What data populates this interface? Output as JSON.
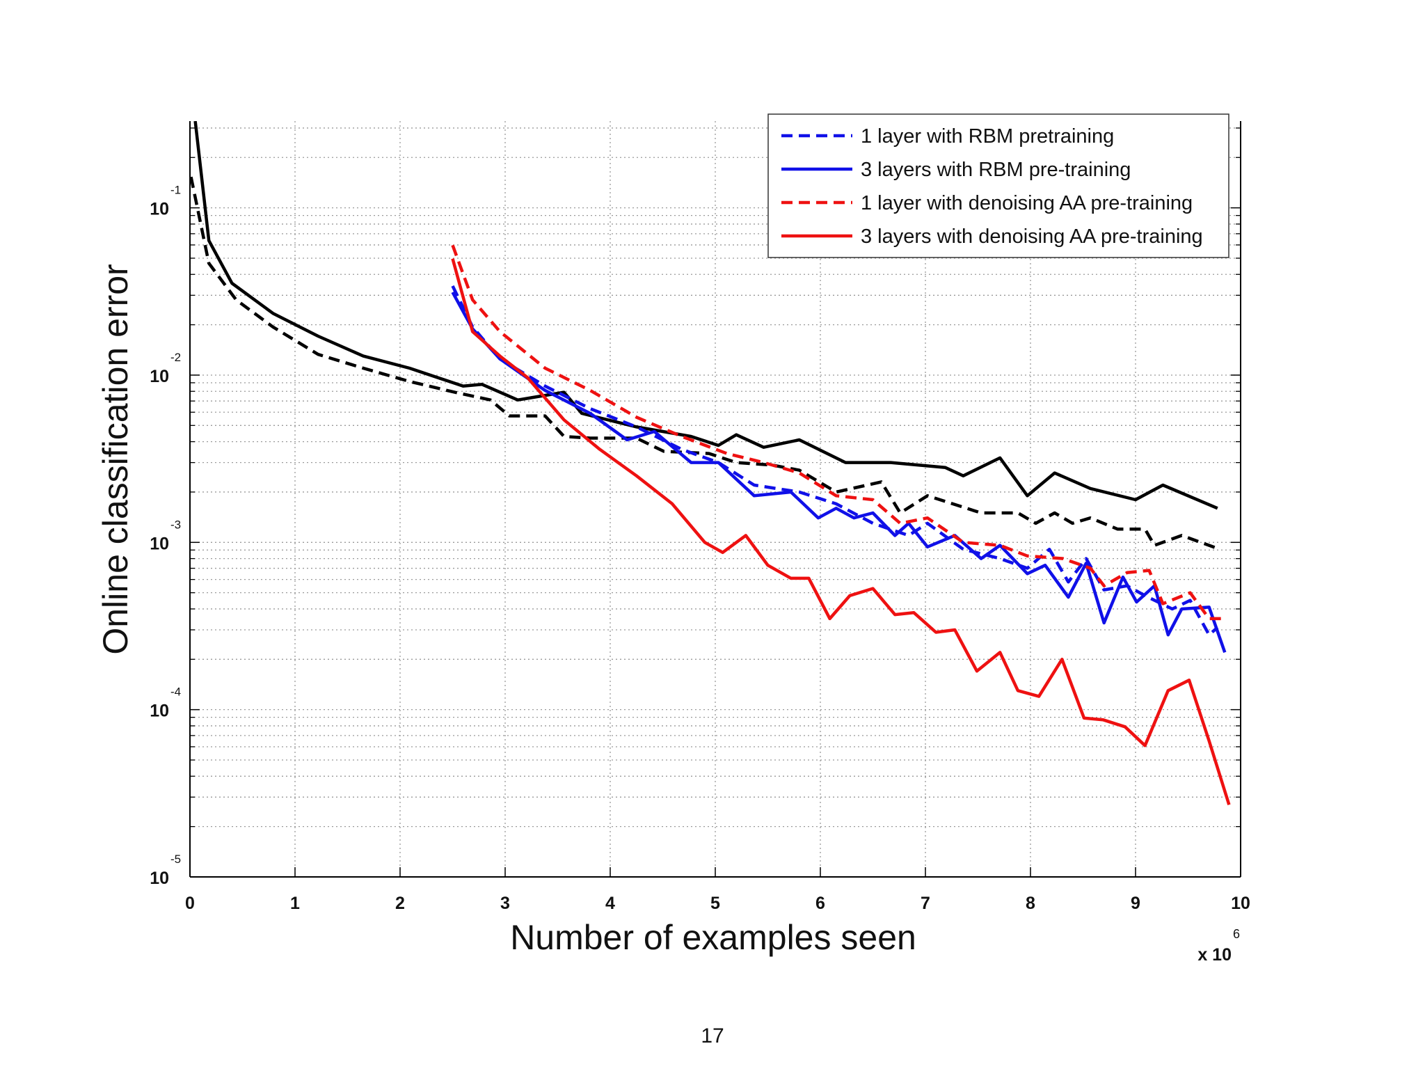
{
  "chart_data": {
    "type": "line",
    "xlabel": "Number of examples seen",
    "ylabel": "Online classification error",
    "x_scale_label": "x 10",
    "x_scale_exponent": "6",
    "xlim": [
      0,
      10
    ],
    "xticks": [
      0,
      1,
      2,
      3,
      4,
      5,
      6,
      7,
      8,
      9,
      10
    ],
    "ylim": [
      1e-05,
      0.33
    ],
    "yscale": "log",
    "yticks": [
      {
        "value": 1e-05,
        "label": "10",
        "exponent": "-5"
      },
      {
        "value": 0.0001,
        "label": "10",
        "exponent": "-4"
      },
      {
        "value": 0.001,
        "label": "10",
        "exponent": "-3"
      },
      {
        "value": 0.01,
        "label": "10",
        "exponent": "-2"
      },
      {
        "value": 0.1,
        "label": "10",
        "exponent": "-1"
      }
    ],
    "grid": true,
    "minor_grid": true,
    "legend": "upper right",
    "series": [
      {
        "color": "#000000",
        "style": "solid",
        "x": [
          0.05,
          0.18,
          0.4,
          0.79,
          1.22,
          1.65,
          2.09,
          2.6,
          2.78,
          3.12,
          3.56,
          3.73,
          4.25,
          4.77,
          5.03,
          5.2,
          5.46,
          5.8,
          6.24,
          6.67,
          7.19,
          7.36,
          7.71,
          7.97,
          8.23,
          8.57,
          9.0,
          9.26,
          9.78
        ],
        "values": [
          0.33,
          0.0637,
          0.0354,
          0.0234,
          0.0171,
          0.013,
          0.011,
          0.0086,
          0.0088,
          0.0071,
          0.0079,
          0.0059,
          0.0049,
          0.0043,
          0.0038,
          0.0044,
          0.0037,
          0.0041,
          0.003,
          0.003,
          0.0028,
          0.0025,
          0.0032,
          0.0019,
          0.0026,
          0.0021,
          0.0018,
          0.0022,
          0.0016
        ]
      },
      {
        "color": "#000000",
        "style": "dashed",
        "x": [
          0.01,
          0.18,
          0.44,
          0.79,
          1.22,
          1.65,
          2.08,
          2.52,
          2.86,
          3.04,
          3.38,
          3.56,
          3.81,
          4.25,
          4.51,
          4.94,
          5.2,
          5.54,
          5.8,
          6.15,
          6.58,
          6.76,
          7.02,
          7.53,
          7.88,
          8.05,
          8.23,
          8.4,
          8.57,
          8.83,
          9.09,
          9.18,
          9.44,
          9.78
        ],
        "values": [
          0.153,
          0.0466,
          0.0282,
          0.0194,
          0.0133,
          0.011,
          0.0092,
          0.0079,
          0.0071,
          0.0057,
          0.0057,
          0.0043,
          0.0042,
          0.0042,
          0.0035,
          0.0034,
          0.003,
          0.0029,
          0.0027,
          0.002,
          0.0023,
          0.0015,
          0.0019,
          0.0015,
          0.0015,
          0.0013,
          0.0015,
          0.0013,
          0.0014,
          0.0012,
          0.0012,
          0.00096,
          0.0011,
          0.00092
        ]
      },
      {
        "name": "1 layer with RBM pretraining",
        "color": "#1010e8",
        "style": "dashed",
        "x": [
          2.5,
          2.69,
          2.95,
          3.38,
          3.81,
          4.25,
          4.68,
          5.03,
          5.37,
          5.8,
          6.15,
          6.5,
          6.84,
          7.02,
          7.36,
          7.71,
          7.97,
          8.18,
          8.36,
          8.53,
          8.7,
          8.92,
          9.09,
          9.35,
          9.52,
          9.7,
          9.78
        ],
        "values": [
          0.0341,
          0.0194,
          0.0125,
          0.0086,
          0.0063,
          0.0049,
          0.0036,
          0.003,
          0.0022,
          0.002,
          0.0017,
          0.0013,
          0.0011,
          0.0013,
          0.00091,
          0.0008,
          0.0007,
          0.00091,
          0.00058,
          0.0008,
          0.00052,
          0.00055,
          0.00048,
          0.0004,
          0.00045,
          0.00028,
          0.00031
        ]
      },
      {
        "name": "3 layers with RBM pre-training",
        "color": "#1010e8",
        "style": "solid",
        "x": [
          2.5,
          2.69,
          2.95,
          3.38,
          3.81,
          4.16,
          4.42,
          4.77,
          5.03,
          5.37,
          5.72,
          5.98,
          6.15,
          6.32,
          6.5,
          6.71,
          6.84,
          7.02,
          7.28,
          7.53,
          7.71,
          7.97,
          8.14,
          8.36,
          8.53,
          8.7,
          8.88,
          9.01,
          9.18,
          9.31,
          9.44,
          9.7,
          9.85
        ],
        "values": [
          0.0313,
          0.0189,
          0.0125,
          0.0081,
          0.0059,
          0.0041,
          0.0046,
          0.003,
          0.003,
          0.0019,
          0.002,
          0.0014,
          0.0016,
          0.0014,
          0.0015,
          0.0011,
          0.0013,
          0.00094,
          0.0011,
          0.0008,
          0.00096,
          0.00065,
          0.00073,
          0.00047,
          0.00075,
          0.00033,
          0.00062,
          0.00044,
          0.00055,
          0.00028,
          0.0004,
          0.00041,
          0.00022
        ]
      },
      {
        "name": "1 layer with denoising AA pre-training",
        "color": "#ee1111",
        "style": "dashed",
        "x": [
          2.5,
          2.69,
          2.95,
          3.38,
          3.81,
          4.25,
          4.68,
          5.11,
          5.46,
          5.8,
          6.15,
          6.5,
          6.76,
          7.02,
          7.36,
          7.71,
          7.97,
          8.31,
          8.57,
          8.7,
          8.92,
          9.13,
          9.26,
          9.52,
          9.7,
          9.87
        ],
        "values": [
          0.0598,
          0.0282,
          0.0182,
          0.011,
          0.0081,
          0.0056,
          0.0043,
          0.0034,
          0.003,
          0.0026,
          0.0019,
          0.0018,
          0.0013,
          0.0014,
          0.001,
          0.00096,
          0.00083,
          0.0008,
          0.0007,
          0.00055,
          0.00066,
          0.00068,
          0.00043,
          0.0005,
          0.00035,
          0.00035
        ]
      },
      {
        "name": "3 layers with denoising AA pre-training",
        "color": "#ee1111",
        "style": "solid",
        "x": [
          2.5,
          2.69,
          2.95,
          3.21,
          3.56,
          3.9,
          4.25,
          4.59,
          4.9,
          5.07,
          5.29,
          5.5,
          5.72,
          5.89,
          6.09,
          6.28,
          6.5,
          6.71,
          6.89,
          7.1,
          7.28,
          7.49,
          7.71,
          7.88,
          8.08,
          8.3,
          8.51,
          8.69,
          8.9,
          9.09,
          9.31,
          9.51,
          9.7,
          9.89
        ],
        "values": [
          0.0497,
          0.0182,
          0.013,
          0.0097,
          0.0054,
          0.0036,
          0.0025,
          0.0017,
          0.001,
          0.00087,
          0.0011,
          0.00073,
          0.00061,
          0.00061,
          0.00035,
          0.00048,
          0.00053,
          0.00037,
          0.00038,
          0.00029,
          0.0003,
          0.00017,
          0.00022,
          0.00013,
          0.00012,
          0.0002,
          8.9e-05,
          8.7e-05,
          7.9e-05,
          6.1e-05,
          0.00013,
          0.00015,
          6.5e-05,
          2.7e-05
        ]
      }
    ]
  },
  "page_number": "17"
}
